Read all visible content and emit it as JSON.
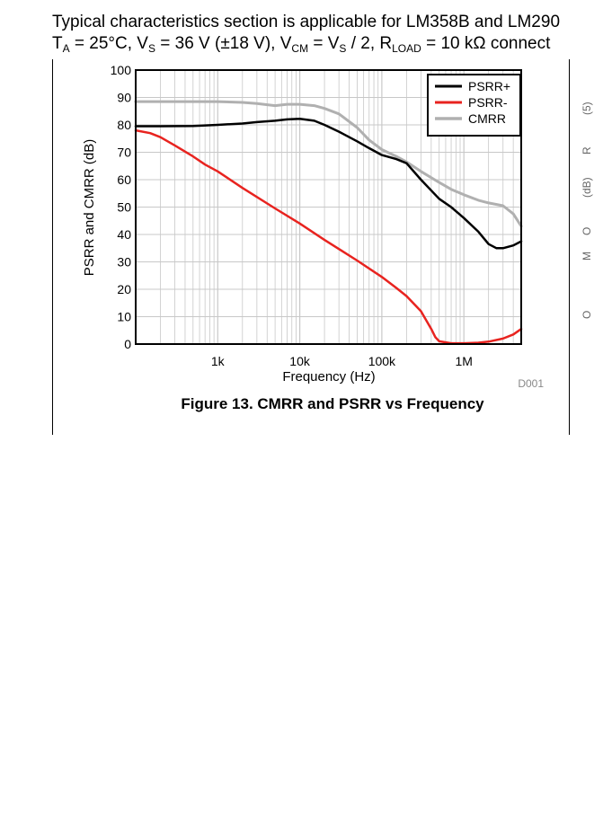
{
  "header": {
    "line1": "Typical characteristics section is applicable for LM358B and LM290",
    "line2": {
      "t": "T",
      "t_sub": "A",
      "a": " = 25°C, V",
      "a_sub": "S",
      "b": " = 36 V (±18 V), V",
      "b_sub": "CM",
      "c": " = V",
      "c_sub": "S",
      "d": " / 2, R",
      "d_sub": "LOAD",
      "e": " = 10 kΩ connect"
    }
  },
  "colors": {
    "psrr_plus": "#000000",
    "psrr_minus": "#e8231f",
    "cmrr": "#b0b0b0",
    "grid": "#c8c8c8"
  },
  "side_fragments": [
    "(5)",
    "R",
    "(dB)",
    "O",
    "M",
    "O"
  ],
  "chart_data": {
    "type": "line",
    "title": "Figure 13. CMRR and PSRR vs Frequency",
    "xlabel": "Frequency (Hz)",
    "ylabel": "PSRR and CMRR (dB)",
    "x_scale": "log",
    "xlim": [
      100,
      5000000
    ],
    "ylim": [
      0,
      100
    ],
    "x_tick_labels": [
      {
        "value": 1000,
        "label": "1k"
      },
      {
        "value": 10000,
        "label": "10k"
      },
      {
        "value": 100000,
        "label": "100k"
      },
      {
        "value": 1000000,
        "label": "1M"
      }
    ],
    "y_ticks": [
      0,
      10,
      20,
      30,
      40,
      50,
      60,
      70,
      80,
      90,
      100
    ],
    "grid": true,
    "legend_position": "top-right",
    "figure_code": "D001",
    "series": [
      {
        "name": "PSRR+",
        "x": [
          100,
          200,
          500,
          1000,
          2000,
          3000,
          5000,
          7000,
          10000,
          15000,
          20000,
          30000,
          50000,
          70000,
          100000,
          150000,
          200000,
          300000,
          500000,
          700000,
          1000000,
          1500000,
          2000000,
          2500000,
          3000000,
          4000000,
          5000000
        ],
        "y": [
          79.5,
          79.5,
          79.6,
          80,
          80.5,
          81,
          81.5,
          82,
          82.2,
          81.5,
          80,
          77.5,
          74,
          71.5,
          69,
          67.5,
          66,
          60,
          53,
          50,
          46,
          41,
          36.5,
          35,
          35,
          36,
          37.5
        ]
      },
      {
        "name": "PSRR-",
        "x": [
          100,
          150,
          200,
          300,
          500,
          700,
          1000,
          2000,
          5000,
          10000,
          20000,
          50000,
          100000,
          150000,
          200000,
          300000,
          400000,
          450000,
          500000,
          700000,
          1000000,
          1500000,
          2000000,
          3000000,
          4000000,
          5000000
        ],
        "y": [
          78,
          77,
          75.5,
          72.5,
          68.5,
          65.5,
          63,
          57,
          49.5,
          44,
          38,
          30.5,
          24.5,
          20.5,
          17.5,
          12,
          5.5,
          2.5,
          1,
          0.3,
          0.3,
          0.5,
          0.9,
          2,
          3.5,
          5.5
        ]
      },
      {
        "name": "CMRR",
        "x": [
          100,
          200,
          500,
          1000,
          2000,
          3000,
          5000,
          7000,
          10000,
          15000,
          20000,
          30000,
          50000,
          70000,
          100000,
          150000,
          200000,
          300000,
          500000,
          700000,
          1000000,
          1500000,
          2000000,
          3000000,
          4000000,
          5000000
        ],
        "y": [
          88.5,
          88.5,
          88.5,
          88.5,
          88.2,
          87.8,
          87,
          87.5,
          87.5,
          87,
          86,
          84,
          79,
          74.5,
          71,
          68.5,
          66.5,
          63,
          59,
          56.5,
          54.5,
          52.5,
          51.5,
          50.5,
          47.5,
          43
        ]
      }
    ]
  }
}
